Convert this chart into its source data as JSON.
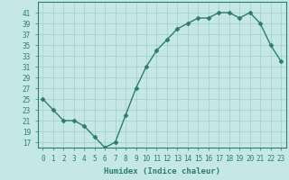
{
  "x": [
    0,
    1,
    2,
    3,
    4,
    5,
    6,
    7,
    8,
    9,
    10,
    11,
    12,
    13,
    14,
    15,
    16,
    17,
    18,
    19,
    20,
    21,
    22,
    23
  ],
  "y": [
    25,
    23,
    21,
    21,
    20,
    18,
    16,
    17,
    22,
    27,
    31,
    34,
    36,
    38,
    39,
    40,
    40,
    41,
    41,
    40,
    41,
    39,
    35,
    32
  ],
  "line_color": "#2d7d6e",
  "marker_color": "#2d7d6e",
  "bg_color": "#c5e8e6",
  "grid_color": "#9dcfcc",
  "xlabel": "Humidex (Indice chaleur)",
  "ylim": [
    16,
    43
  ],
  "xlim": [
    -0.5,
    23.5
  ],
  "yticks": [
    17,
    19,
    21,
    23,
    25,
    27,
    29,
    31,
    33,
    35,
    37,
    39,
    41
  ],
  "xticks": [
    0,
    1,
    2,
    3,
    4,
    5,
    6,
    7,
    8,
    9,
    10,
    11,
    12,
    13,
    14,
    15,
    16,
    17,
    18,
    19,
    20,
    21,
    22,
    23
  ],
  "xlabel_fontsize": 6.5,
  "tick_fontsize": 5.5,
  "line_width": 1.0,
  "marker_size": 2.5
}
